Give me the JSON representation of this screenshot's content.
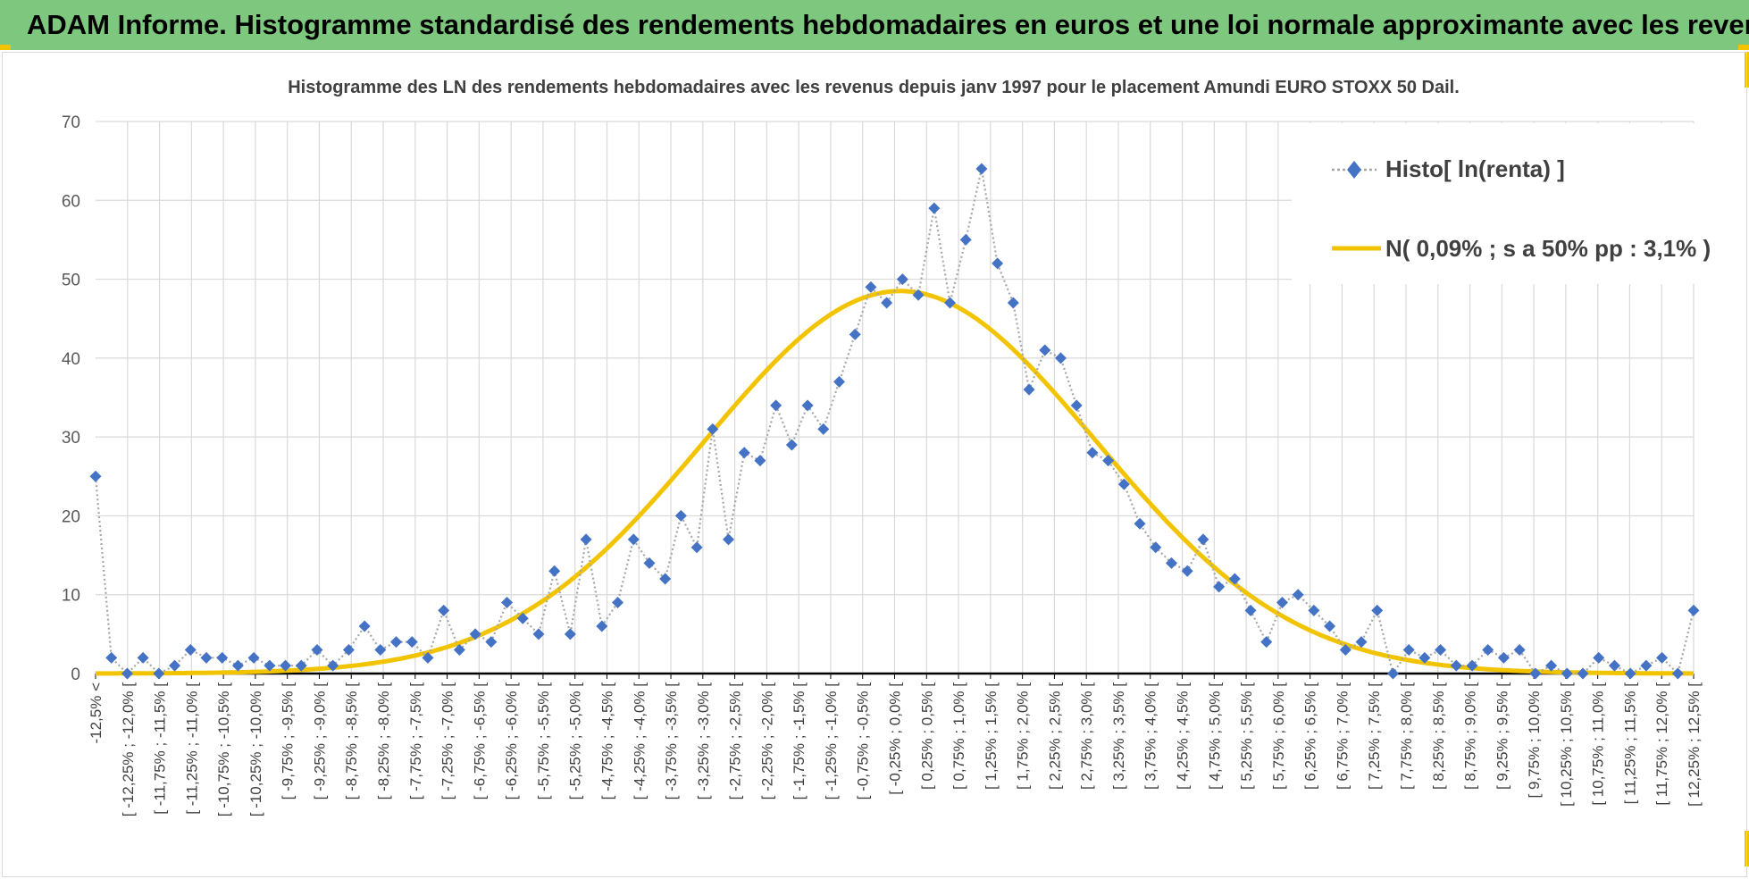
{
  "banner": {
    "title": "ADAM Informe. Histogramme standardisé des rendements hebdomadaires en euros et une loi normale approximante avec les revenus connus capitalisés"
  },
  "colors": {
    "banner_bg": "#7dc87e",
    "histo_series": "#4472c4",
    "normal_series": "#f2c400",
    "grid": "#d9d9d9",
    "baseline": "#000000"
  },
  "chart_data": {
    "type": "line",
    "title": "Histogramme des LN des rendements hebdomadaires avec les revenus depuis janv 1997 pour le placement Amundi EURO STOXX 50 Dail.",
    "xlabel": "",
    "ylabel": "",
    "ylim": [
      0,
      70
    ],
    "yticks": [
      0,
      10,
      20,
      30,
      40,
      50,
      60,
      70
    ],
    "grid": true,
    "legend_position": "top-right",
    "categories": [
      "-12,5% <",
      "[ -12,25% ; -12,0% [",
      "[ -11,75% ; -11,5% [",
      "[ -11,25% ; -11,0% [",
      "[ -10,75% ; -10,5% [",
      "[ -10,25% ; -10,0% [",
      "[ -9,75% ; -9,5% [",
      "[ -9,25% ; -9,0% [",
      "[ -8,75% ; -8,5% [",
      "[ -8,25% ; -8,0% [",
      "[ -7,75% ; -7,5% [",
      "[ -7,25% ; -7,0% [",
      "[ -6,75% ; -6,5% [",
      "[ -6,25% ; -6,0% [",
      "[ -5,75% ; -5,5% [",
      "[ -5,25% ; -5,0% [",
      "[ -4,75% ; -4,5% [",
      "[ -4,25% ; -4,0% [",
      "[ -3,75% ; -3,5% [",
      "[ -3,25% ; -3,0% [",
      "[ -2,75% ; -2,5% [",
      "[ -2,25% ; -2,0% [",
      "[ -1,75% ; -1,5% [",
      "[ -1,25% ; -1,0% [",
      "[ -0,75% ; -0,5% [",
      "[ -0,25% ; 0,0% [",
      "[ 0,25% ; 0,5% [",
      "[ 0,75% ; 1,0% [",
      "[ 1,25% ; 1,5% [",
      "[ 1,75% ; 2,0% [",
      "[ 2,25% ; 2,5% [",
      "[ 2,75% ; 3,0% [",
      "[ 3,25% ; 3,5% [",
      "[ 3,75% ; 4,0% [",
      "[ 4,25% ; 4,5% [",
      "[ 4,75% ; 5,0% [",
      "[ 5,25% ; 5,5% [",
      "[ 5,75% ; 6,0% [",
      "[ 6,25% ; 6,5% [",
      "[ 6,75% ; 7,0% [",
      "[ 7,25% ; 7,5% [",
      "[ 7,75% ; 8,0% [",
      "[ 8,25% ; 8,5% [",
      "[ 8,75% ; 9,0% [",
      "[ 9,25% ; 9,5% [",
      "[ 9,75% ; 10,0% [",
      "[ 10,25% ; 10,5% [",
      "[ 10,75% ; 11,0% [",
      "[ 11,25% ; 11,5% [",
      "[ 11,75% ; 12,0% [",
      "[ 12,25% ; 12,5% ["
    ],
    "histo_values": [
      25,
      2,
      0,
      2,
      0,
      1,
      3,
      2,
      2,
      1,
      2,
      1,
      1,
      1,
      3,
      1,
      3,
      6,
      3,
      4,
      4,
      2,
      8,
      3,
      5,
      4,
      9,
      7,
      5,
      13,
      5,
      17,
      6,
      9,
      17,
      14,
      12,
      20,
      16,
      31,
      17,
      28,
      27,
      34,
      29,
      34,
      31,
      37,
      43,
      49,
      47,
      50,
      48,
      59,
      47,
      55,
      64,
      52,
      47,
      36,
      41,
      40,
      34,
      28,
      27,
      24,
      19,
      16,
      14,
      13,
      17,
      11,
      12,
      8,
      4,
      9,
      10,
      8,
      6,
      3,
      4,
      8,
      0,
      3,
      2,
      3,
      1,
      1,
      3,
      2,
      3,
      0,
      1,
      0,
      0,
      2,
      1,
      0,
      1,
      2,
      0,
      8
    ],
    "normal": {
      "mean_pct": 0.09,
      "sd_pct": 3.1,
      "peak": 48.5
    },
    "series": [
      {
        "name": "Histo[ ln(renta) ]",
        "style": "dotted-line-diamond-markers"
      },
      {
        "name": "N( 0,09% ; s a 50% pp : 3,1% )",
        "style": "solid-line"
      }
    ]
  }
}
